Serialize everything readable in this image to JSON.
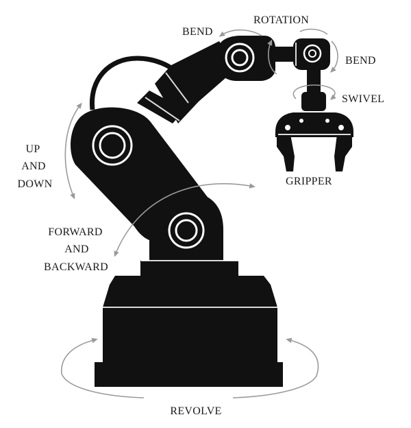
{
  "labels": {
    "bend_left": "BEND",
    "rotation": "ROTATION",
    "bend_right": "BEND",
    "swivel": "SWIVEL",
    "gripper": "GRIPPER",
    "up": "UP",
    "and1": "AND",
    "down": "DOWN",
    "forward": "FORWARD",
    "and2": "AND",
    "backward": "BACKWARD",
    "revolve": "REVOLVE"
  },
  "colors": {
    "robot": "#111111",
    "rings": "#ffffff",
    "arrows": "#9a9a9a"
  }
}
